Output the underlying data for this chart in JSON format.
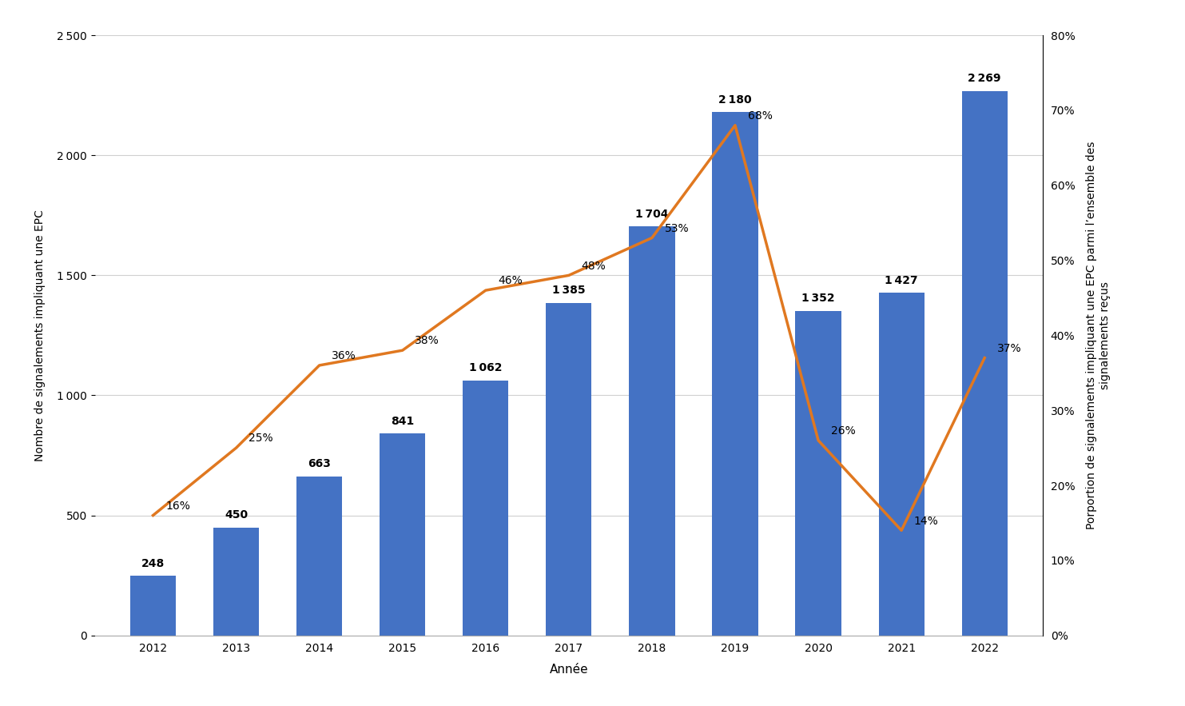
{
  "years": [
    2012,
    2013,
    2014,
    2015,
    2016,
    2017,
    2018,
    2019,
    2020,
    2021,
    2022
  ],
  "bar_values": [
    248,
    450,
    663,
    841,
    1062,
    1385,
    1704,
    2180,
    1352,
    1427,
    2269
  ],
  "line_values": [
    0.16,
    0.25,
    0.36,
    0.38,
    0.46,
    0.48,
    0.53,
    0.68,
    0.26,
    0.14,
    0.37
  ],
  "bar_labels": [
    "248",
    "450",
    "663",
    "841",
    "1 062",
    "1 385",
    "1 704",
    "2 180",
    "1 352",
    "1 427",
    "2 269"
  ],
  "line_labels": [
    "16%",
    "25%",
    "36%",
    "38%",
    "46%",
    "48%",
    "53%",
    "68%",
    "26%",
    "14%",
    "37%"
  ],
  "bar_color": "#4472C4",
  "line_color": "#E07820",
  "xlabel": "Année",
  "ylabel_left": "Nombre de signalements impliquant une EPC",
  "ylabel_right": "Porportion de signalements impliquant une EPC parmi l’ensemble des\nsignalements reçus",
  "ylim_left": [
    0,
    2500
  ],
  "ylim_right": [
    0,
    0.8
  ],
  "yticks_left": [
    0,
    500,
    1000,
    1500,
    2000,
    2500
  ],
  "ytick_labels_left": [
    "0",
    "500",
    "1 000",
    "1 500",
    "2 000",
    "2 500"
  ],
  "yticks_right": [
    0.0,
    0.1,
    0.2,
    0.3,
    0.4,
    0.5,
    0.6,
    0.7,
    0.8
  ],
  "ytick_labels_right": [
    "0%",
    "10%",
    "20%",
    "30%",
    "40%",
    "50%",
    "60%",
    "70%",
    "80%"
  ],
  "background_color": "#ffffff",
  "bar_label_fontsize": 10,
  "line_label_fontsize": 10,
  "axis_fontsize": 10,
  "ylabel_fontsize": 10,
  "grid_color": "#d0d0d0",
  "line_label_offsets_x": [
    0.18,
    0.18,
    0.18,
    0.18,
    0.18,
    0.18,
    0.18,
    0.18,
    0.18,
    0.18,
    0.18
  ],
  "line_label_offsets_y": [
    0.005,
    0.005,
    0.005,
    0.005,
    0.005,
    0.005,
    0.005,
    0.005,
    0.005,
    0.005,
    0.005
  ]
}
